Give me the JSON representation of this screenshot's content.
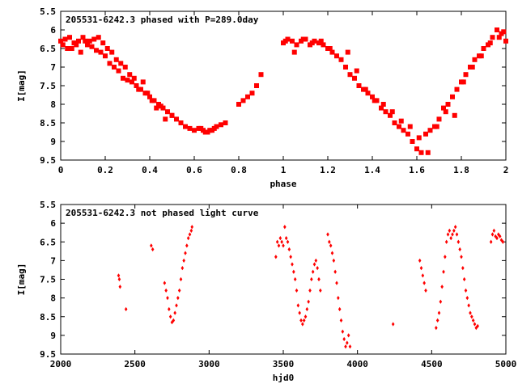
{
  "colors": {
    "points": "#ff0000",
    "frame": "#000000",
    "background": "#ffffff"
  },
  "chart_data": [
    {
      "type": "scatter",
      "title": "205531-6242.3 phased with P=289.0day",
      "xlabel": "phase",
      "ylabel": "I[mag]",
      "xlim": [
        0,
        2
      ],
      "ylim": [
        9.5,
        5.5
      ],
      "y_inverted": true,
      "grid": false,
      "x_ticks": [
        "0",
        "0.2",
        "0.4",
        "0.6",
        "0.8",
        "1",
        "1.2",
        "1.4",
        "1.6",
        "1.8",
        "2"
      ],
      "y_ticks": [
        "5.5",
        "6",
        "6.5",
        "7",
        "7.5",
        "8",
        "8.5",
        "9",
        "9.5"
      ],
      "series": [
        {
          "x": [
            0.0,
            0.02,
            0.04,
            0.06,
            0.08,
            0.1,
            0.12,
            0.14,
            0.16,
            0.18,
            0.2,
            0.22,
            0.24,
            0.26,
            0.28,
            0.3,
            0.32,
            0.34,
            0.36,
            0.38,
            0.4,
            0.42,
            0.44,
            0.46,
            0.48,
            0.5,
            0.52,
            0.54,
            0.56,
            0.58,
            0.6,
            0.62,
            0.64,
            0.66,
            0.68,
            0.7,
            0.72,
            0.74,
            0.8,
            0.82,
            0.84,
            0.86,
            0.88,
            0.9,
            0.01,
            0.05,
            0.09,
            0.13,
            0.17,
            0.21,
            0.25,
            0.29,
            0.31,
            0.33,
            0.35,
            0.37,
            0.39,
            0.41,
            0.43,
            0.45,
            0.47,
            0.5,
            0.63,
            0.65,
            0.67,
            0.69,
            0.03,
            0.07,
            0.11,
            0.15,
            0.19,
            0.23,
            0.27,
            1.0,
            1.02,
            1.04,
            1.06,
            1.08,
            1.1,
            1.12,
            1.14,
            1.16,
            1.18,
            1.2,
            1.22,
            1.24,
            1.26,
            1.28,
            1.3,
            1.32,
            1.34,
            1.36,
            1.38,
            1.4,
            1.42,
            1.44,
            1.46,
            1.48,
            1.5,
            1.52,
            1.54,
            1.56,
            1.58,
            1.6,
            1.62,
            1.64,
            1.66,
            1.68,
            1.7,
            1.72,
            1.74,
            1.76,
            1.78,
            1.8,
            1.82,
            1.84,
            1.86,
            1.88,
            1.9,
            1.92,
            1.94,
            1.96,
            1.98,
            2.0,
            1.01,
            1.05,
            1.09,
            1.13,
            1.17,
            1.21,
            1.29,
            1.33,
            1.37,
            1.41,
            1.45,
            1.49,
            1.53,
            1.57,
            1.61,
            1.65,
            1.69,
            1.73,
            1.77,
            1.81,
            1.85,
            1.89,
            1.93,
            1.97,
            1.99
          ],
          "y": [
            6.3,
            6.25,
            6.2,
            6.35,
            6.3,
            6.2,
            6.4,
            6.45,
            6.55,
            6.6,
            6.7,
            6.9,
            7.0,
            7.1,
            7.3,
            7.35,
            7.4,
            7.5,
            7.6,
            7.7,
            7.8,
            7.9,
            8.0,
            8.1,
            8.2,
            8.3,
            8.4,
            8.5,
            8.6,
            8.65,
            8.7,
            8.65,
            8.7,
            8.75,
            8.7,
            8.6,
            8.55,
            8.5,
            8.0,
            7.9,
            7.8,
            7.7,
            7.5,
            7.2,
            6.4,
            6.5,
            6.6,
            6.3,
            6.2,
            6.5,
            6.8,
            7.0,
            7.2,
            7.3,
            7.6,
            7.4,
            7.7,
            7.9,
            8.1,
            8.05,
            8.4,
            8.3,
            8.65,
            8.75,
            8.7,
            8.65,
            6.5,
            6.4,
            6.3,
            6.25,
            6.35,
            6.6,
            6.9,
            6.35,
            6.25,
            6.3,
            6.4,
            6.3,
            6.25,
            6.4,
            6.3,
            6.35,
            6.4,
            6.5,
            6.6,
            6.7,
            6.8,
            7.0,
            7.2,
            7.3,
            7.5,
            7.6,
            7.7,
            7.8,
            7.9,
            8.1,
            8.2,
            8.3,
            8.5,
            8.6,
            8.7,
            8.8,
            9.0,
            9.2,
            9.3,
            8.8,
            8.7,
            8.6,
            8.4,
            8.1,
            8.0,
            7.8,
            7.6,
            7.4,
            7.2,
            7.0,
            6.8,
            6.7,
            6.5,
            6.4,
            6.2,
            6.0,
            6.1,
            6.3,
            6.3,
            6.6,
            6.25,
            6.35,
            6.3,
            6.5,
            6.6,
            7.1,
            7.6,
            7.9,
            8.0,
            8.2,
            8.45,
            8.6,
            8.9,
            9.3,
            8.6,
            8.2,
            8.3,
            7.4,
            7.0,
            6.7,
            6.35,
            6.2,
            6.05
          ],
          "marker": "square"
        }
      ]
    },
    {
      "type": "scatter",
      "title": "205531-6242.3 not phased light curve",
      "xlabel": "hjd0",
      "ylabel": "I[mag]",
      "xlim": [
        2000,
        5000
      ],
      "ylim": [
        9.5,
        5.5
      ],
      "y_inverted": true,
      "grid": false,
      "x_ticks": [
        "2000",
        "2500",
        "3000",
        "3500",
        "4000",
        "4500",
        "5000"
      ],
      "y_ticks": [
        "5.5",
        "6",
        "6.5",
        "7",
        "7.5",
        "8",
        "8.5",
        "9",
        "9.5"
      ],
      "series": [
        {
          "x": [
            2390,
            2395,
            2400,
            2440,
            2610,
            2620,
            2700,
            2710,
            2720,
            2730,
            2740,
            2750,
            2760,
            2770,
            2780,
            2790,
            2800,
            2810,
            2820,
            2830,
            2840,
            2850,
            2860,
            2870,
            2880,
            2885,
            3450,
            3460,
            3470,
            3480,
            3490,
            3500,
            3510,
            3520,
            3530,
            3540,
            3550,
            3560,
            3570,
            3580,
            3590,
            3600,
            3610,
            3620,
            3630,
            3640,
            3650,
            3660,
            3670,
            3680,
            3690,
            3700,
            3710,
            3720,
            3730,
            3740,
            3750,
            3800,
            3810,
            3820,
            3830,
            3840,
            3850,
            3860,
            3870,
            3880,
            3890,
            3900,
            3910,
            3920,
            3930,
            3940,
            3950,
            4240,
            4420,
            4430,
            4440,
            4450,
            4460,
            4530,
            4540,
            4550,
            4560,
            4570,
            4580,
            4590,
            4600,
            4610,
            4620,
            4630,
            4640,
            4650,
            4660,
            4670,
            4680,
            4690,
            4700,
            4710,
            4720,
            4730,
            4740,
            4750,
            4760,
            4770,
            4780,
            4790,
            4800,
            4810,
            4900,
            4910,
            4920,
            4930,
            4940,
            4950,
            4960,
            4970,
            4980
          ],
          "y": [
            7.4,
            7.5,
            7.7,
            8.3,
            6.6,
            6.7,
            7.6,
            7.8,
            8.0,
            8.3,
            8.5,
            8.65,
            8.6,
            8.4,
            8.2,
            8.0,
            7.8,
            7.5,
            7.2,
            7.0,
            6.8,
            6.6,
            6.4,
            6.3,
            6.2,
            6.1,
            6.9,
            6.5,
            6.6,
            6.4,
            6.5,
            6.6,
            6.1,
            6.4,
            6.5,
            6.7,
            6.9,
            7.1,
            7.3,
            7.5,
            7.8,
            8.2,
            8.4,
            8.6,
            8.7,
            8.6,
            8.5,
            8.3,
            8.1,
            7.8,
            7.5,
            7.3,
            7.1,
            7.0,
            7.2,
            7.5,
            7.8,
            6.3,
            6.5,
            6.6,
            6.8,
            7.0,
            7.3,
            7.6,
            8.0,
            8.3,
            8.6,
            8.9,
            9.1,
            9.3,
            9.2,
            9.0,
            9.3,
            8.7,
            7.0,
            7.2,
            7.4,
            7.6,
            7.8,
            8.8,
            8.6,
            8.4,
            8.1,
            7.7,
            7.3,
            6.9,
            6.5,
            6.3,
            6.2,
            6.4,
            6.3,
            6.2,
            6.1,
            6.3,
            6.5,
            6.7,
            6.9,
            7.2,
            7.5,
            7.8,
            8.0,
            8.2,
            8.4,
            8.5,
            8.6,
            8.7,
            8.8,
            8.75,
            6.5,
            6.3,
            6.2,
            6.35,
            6.4,
            6.3,
            6.35,
            6.45,
            6.5
          ],
          "marker": "diamond"
        }
      ]
    }
  ]
}
